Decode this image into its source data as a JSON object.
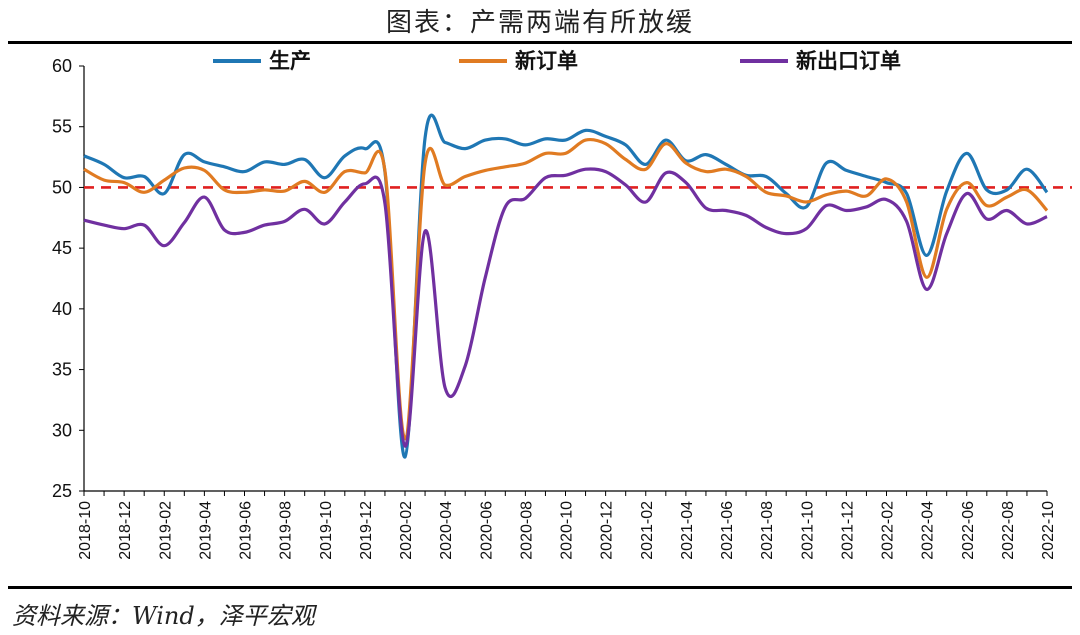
{
  "header": {
    "title": "图表：产需两端有所放缓"
  },
  "footer": {
    "source": "资料来源：Wind，泽平宏观"
  },
  "colors": {
    "production": "#1f77b4",
    "new_orders": "#e07b22",
    "export_orders": "#7030a0",
    "reference": "#e02020"
  },
  "chart_data": {
    "type": "line",
    "title": "图表：产需两端有所放缓",
    "xlabel": "",
    "ylabel": "",
    "ylim": [
      25,
      60
    ],
    "yticks": [
      25,
      30,
      35,
      40,
      45,
      50,
      55,
      60
    ],
    "reference_line": {
      "y": 50,
      "style": "dashed"
    },
    "legend_position": "top",
    "grid": false,
    "x": [
      "2018-10",
      "2018-11",
      "2018-12",
      "2019-01",
      "2019-02",
      "2019-03",
      "2019-04",
      "2019-05",
      "2019-06",
      "2019-07",
      "2019-08",
      "2019-09",
      "2019-10",
      "2019-11",
      "2019-12",
      "2020-01",
      "2020-02",
      "2020-03",
      "2020-04",
      "2020-05",
      "2020-06",
      "2020-07",
      "2020-08",
      "2020-09",
      "2020-10",
      "2020-11",
      "2020-12",
      "2021-01",
      "2021-02",
      "2021-03",
      "2021-04",
      "2021-05",
      "2021-06",
      "2021-07",
      "2021-08",
      "2021-09",
      "2021-10",
      "2021-11",
      "2021-12",
      "2022-01",
      "2022-02",
      "2022-03",
      "2022-04",
      "2022-05",
      "2022-06",
      "2022-07",
      "2022-08",
      "2022-09",
      "2022-10"
    ],
    "xtick_labels": [
      "2018-10",
      "2018-12",
      "2019-02",
      "2019-04",
      "2019-06",
      "2019-08",
      "2019-10",
      "2019-12",
      "2020-02",
      "2020-04",
      "2020-06",
      "2020-08",
      "2020-10",
      "2020-12",
      "2021-02",
      "2021-04",
      "2021-06",
      "2021-08",
      "2021-10",
      "2021-12",
      "2022-02",
      "2022-04",
      "2022-06",
      "2022-08",
      "2022-10"
    ],
    "series": [
      {
        "name": "生产",
        "color": "#1f77b4",
        "values": [
          52.6,
          51.9,
          50.8,
          50.9,
          49.5,
          52.7,
          52.1,
          51.7,
          51.3,
          52.1,
          51.9,
          52.3,
          50.8,
          52.6,
          53.2,
          51.3,
          27.8,
          54.1,
          53.7,
          53.2,
          53.9,
          54.0,
          53.5,
          54.0,
          53.9,
          54.7,
          54.2,
          53.5,
          51.9,
          53.9,
          52.2,
          52.7,
          51.9,
          51.0,
          50.9,
          49.5,
          48.4,
          52.0,
          51.4,
          50.9,
          50.4,
          49.5,
          44.4,
          49.7,
          52.8,
          49.8,
          49.8,
          51.5,
          49.6
        ]
      },
      {
        "name": "新订单",
        "color": "#e07b22",
        "values": [
          51.5,
          50.6,
          50.4,
          49.6,
          50.6,
          51.6,
          51.4,
          49.8,
          49.6,
          49.8,
          49.7,
          50.5,
          49.6,
          51.3,
          51.2,
          51.4,
          29.3,
          52.0,
          50.2,
          50.9,
          51.4,
          51.7,
          52.0,
          52.8,
          52.8,
          53.9,
          53.6,
          52.3,
          51.5,
          53.6,
          52.0,
          51.3,
          51.5,
          50.9,
          49.6,
          49.3,
          48.8,
          49.4,
          49.7,
          49.3,
          50.7,
          48.8,
          42.6,
          48.2,
          50.4,
          48.5,
          49.2,
          49.8,
          48.1
        ]
      },
      {
        "name": "新出口订单",
        "color": "#7030a0",
        "values": [
          47.3,
          46.9,
          46.6,
          46.9,
          45.2,
          47.1,
          49.2,
          46.5,
          46.3,
          46.9,
          47.2,
          48.2,
          47.0,
          48.8,
          50.3,
          48.7,
          28.7,
          46.4,
          33.5,
          35.3,
          42.6,
          48.4,
          49.1,
          50.8,
          51.0,
          51.5,
          51.3,
          50.2,
          48.8,
          51.2,
          50.4,
          48.3,
          48.1,
          47.7,
          46.7,
          46.2,
          46.6,
          48.5,
          48.1,
          48.4,
          49.0,
          47.2,
          41.6,
          46.2,
          49.5,
          47.4,
          48.1,
          47.0,
          47.6
        ]
      }
    ]
  }
}
